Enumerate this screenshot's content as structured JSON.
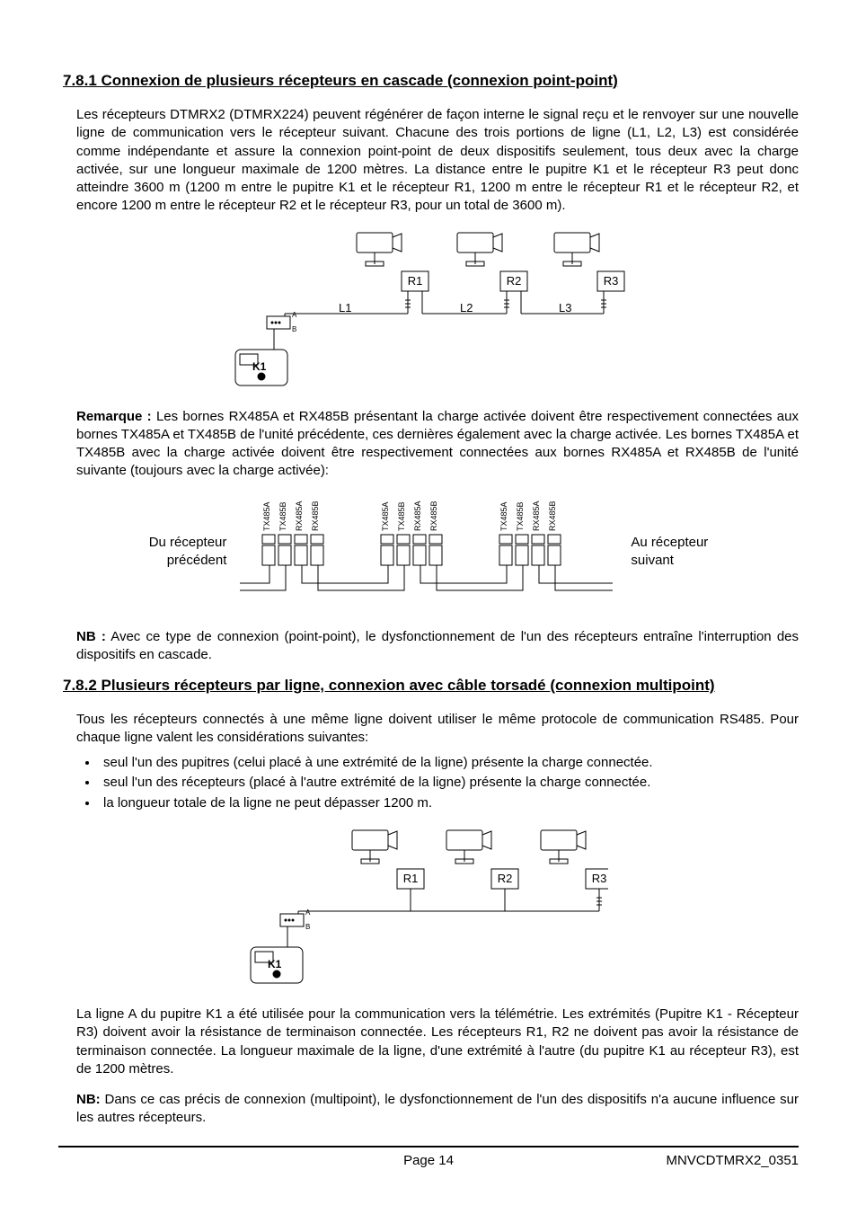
{
  "section1": {
    "heading": "7.8.1 Connexion de plusieurs récepteurs en cascade (connexion point-point)",
    "para1": "Les récepteurs DTMRX2 (DTMRX224) peuvent régénérer de façon interne le signal reçu et le renvoyer sur une nouvelle ligne de communication vers le récepteur suivant. Chacune des trois portions de ligne (L1, L2, L3) est considérée comme indépendante et assure la connexion point-point de deux dispositifs seulement, tous deux avec la charge activée, sur une longueur maximale de 1200 mètres. La distance entre le pupitre K1 et le récepteur R3 peut donc atteindre 3600 m (1200 m entre le pupitre K1 et le récepteur R1, 1200 m entre le récepteur R1 et le récepteur R2, et encore 1200 m entre le récepteur R2 et le récepteur R3, pour un total de 3600 m).",
    "remarque_label": "Remarque :",
    "remarque_text": " Les bornes RX485A et RX485B présentant la charge activée doivent être respectivement connectées aux bornes TX485A et TX485B de l'unité précédente, ces dernières également avec la charge activée. Les bornes TX485A et TX485B avec la charge activée doivent être respectivement connectées aux bornes RX485A et RX485B de l'unité suivante (toujours avec la charge activée):",
    "diag2_left1": "Du récepteur",
    "diag2_left2": "précédent",
    "diag2_right1": "Au récepteur",
    "diag2_right2": "suivant",
    "nb_label": "NB :",
    "nb_text": " Avec ce type de connexion (point-point), le dysfonctionnement de l'un des récepteurs entraîne l'interruption des dispositifs en cascade."
  },
  "section2": {
    "heading": "7.8.2 Plusieurs récepteurs par ligne, connexion avec câble torsadé (connexion multipoint)",
    "para1": "Tous les récepteurs connectés à une même ligne doivent utiliser le même protocole de communication RS485. Pour chaque ligne valent les considérations suivantes:",
    "bullets": [
      "seul l'un des pupitres (celui placé à une extrémité de la ligne) présente la charge connectée.",
      "seul l'un des récepteurs (placé à l'autre extrémité de la ligne) présente la charge connectée.",
      "la longueur totale de la ligne ne peut dépasser 1200 m."
    ],
    "para2": "La ligne A du pupitre K1 a été utilisée pour la communication vers la télémétrie. Les extrémités (Pupitre K1 - Récepteur R3) doivent avoir la résistance de terminaison connectée. Les récepteurs R1, R2 ne doivent pas avoir la résistance de terminaison connectée. La longueur maximale de la ligne, d'une extrémité à l'autre (du pupitre K1 au récepteur R3), est de 1200 mètres.",
    "nb_label": "NB:",
    "nb_text": " Dans ce cas précis de connexion (multipoint), le dysfonctionnement de l'un des dispositifs n'a aucune influence sur les autres récepteurs."
  },
  "diagram1": {
    "R1": "R1",
    "R2": "R2",
    "R3": "R3",
    "L1": "L1",
    "L2": "L2",
    "L3": "L3",
    "K1": "K1",
    "A": "A",
    "B": "B"
  },
  "diagram2": {
    "labels": [
      "TX485A",
      "TX485B",
      "RX485A",
      "RX485B",
      "TX485A",
      "TX485B",
      "RX485A",
      "RX485B",
      "TX485A",
      "TX485B",
      "RX485A",
      "RX485B"
    ]
  },
  "diagram3": {
    "R1": "R1",
    "R2": "R2",
    "R3": "R3",
    "K1": "K1",
    "A": "A",
    "B": "B"
  },
  "footer": {
    "page": "Page 14",
    "doc": "MNVCDTMRX2_0351"
  },
  "colors": {
    "text": "#000000",
    "background": "#ffffff",
    "line": "#000000"
  }
}
